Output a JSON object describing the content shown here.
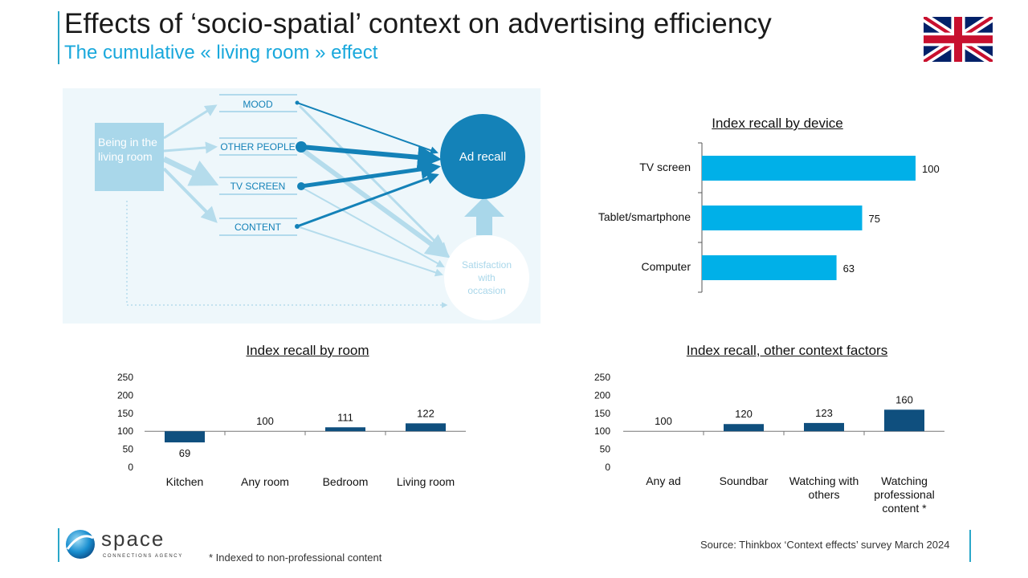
{
  "header": {
    "title": "Effects of ‘socio-spatial’ context on advertising efficiency",
    "subtitle": "The cumulative « living room » effect",
    "flag_icon": "uk-flag-icon"
  },
  "diagram": {
    "source_label": "Being in the living room",
    "factors": [
      "MOOD",
      "OTHER PEOPLE",
      "TV SCREEN",
      "CONTENT"
    ],
    "ad_recall_label": "Ad recall",
    "satisfaction_label": "Satisfaction with occasion",
    "colors": {
      "dark": "#1482b8",
      "light": "#b5dcec",
      "box": "#a9d7ea",
      "bg": "#eef7fb"
    }
  },
  "chart_data": [
    {
      "id": "device",
      "type": "bar",
      "orientation": "horizontal",
      "title": "Index recall by device",
      "categories": [
        "TV screen",
        "Tablet/smartphone",
        "Computer"
      ],
      "values": [
        100,
        75,
        63
      ],
      "xlim": [
        0,
        100
      ],
      "color": "#00b0e8",
      "grid": false
    },
    {
      "id": "room",
      "type": "bar",
      "title": "Index recall by room",
      "categories": [
        "Kitchen",
        "Any room",
        "Bedroom",
        "Living room"
      ],
      "values": [
        69,
        100,
        111,
        122
      ],
      "baseline": 100,
      "ylim": [
        0,
        250
      ],
      "yticks": [
        0,
        50,
        100,
        150,
        200,
        250
      ],
      "color": "#0f4f7e",
      "grid": false
    },
    {
      "id": "context",
      "type": "bar",
      "title": "Index recall, other context factors",
      "categories": [
        "Any ad",
        "Soundbar",
        "Watching with others",
        "Watching professional content *"
      ],
      "values": [
        100,
        120,
        123,
        160
      ],
      "baseline": 100,
      "ylim": [
        0,
        250
      ],
      "yticks": [
        0,
        50,
        100,
        150,
        200,
        250
      ],
      "color": "#0f4f7e",
      "grid": false
    }
  ],
  "footer": {
    "logo_word": "space",
    "logo_tagline": "CONNECTIONS AGENCY",
    "footnote": "* Indexed to non-professional content",
    "source": "Source: Thinkbox ‘Context effects’ survey March 2024"
  }
}
